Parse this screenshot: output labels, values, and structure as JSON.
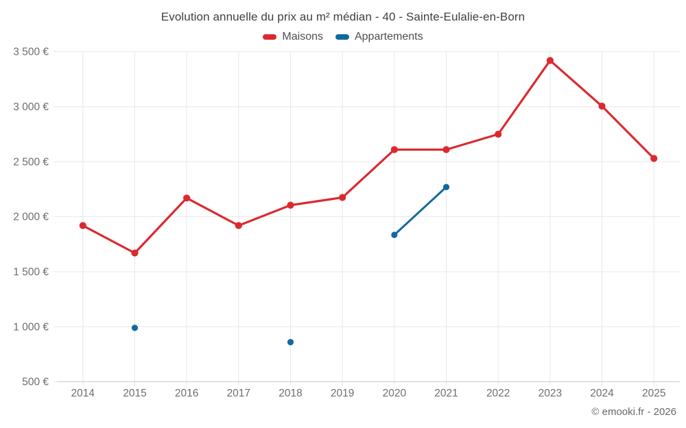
{
  "chart_data": {
    "type": "line",
    "title": "Evolution annuelle du prix au m² médian - 40 - Sainte-Eulalie-en-Born",
    "categories": [
      "2014",
      "2015",
      "2016",
      "2017",
      "2018",
      "2019",
      "2020",
      "2021",
      "2022",
      "2023",
      "2024",
      "2025"
    ],
    "series": [
      {
        "name": "Maisons",
        "color": "#da2a30",
        "values": [
          1920,
          1670,
          2170,
          1920,
          2105,
          2175,
          2610,
          2610,
          2750,
          3420,
          3005,
          2530
        ]
      },
      {
        "name": "Appartements",
        "color": "#11699e",
        "values": [
          null,
          990,
          null,
          null,
          860,
          null,
          1835,
          2270,
          null,
          null,
          null,
          null
        ]
      }
    ],
    "xlabel": "",
    "ylabel": "",
    "ylim": [
      500,
      3500
    ],
    "y_ticks": [
      500,
      1000,
      1500,
      2000,
      2500,
      3000,
      3500
    ],
    "y_tick_labels": [
      "500 €",
      "1 000 €",
      "1 500 €",
      "2 000 €",
      "2 500 €",
      "3 000 €",
      "3 500 €"
    ],
    "grid": true,
    "legend_position": "top"
  },
  "footer": {
    "credit": "© emooki.fr - 2026"
  }
}
